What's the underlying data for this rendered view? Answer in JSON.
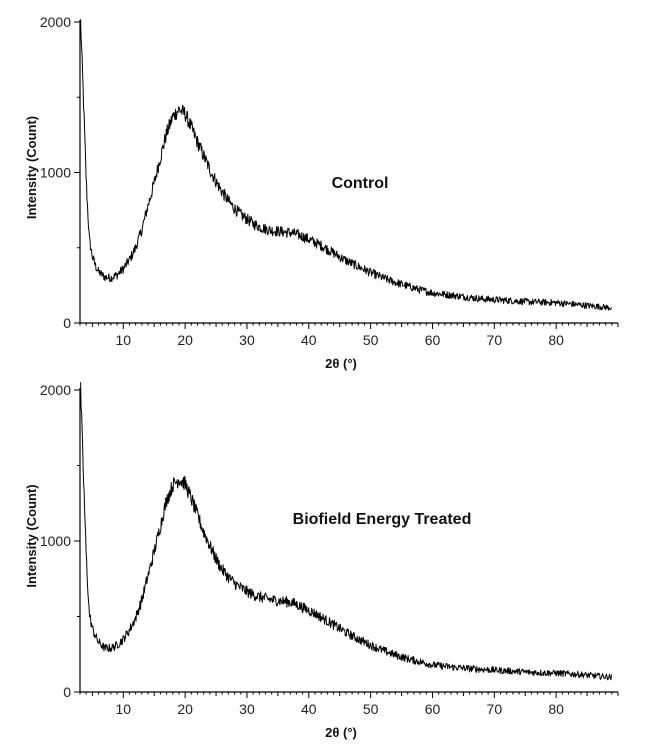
{
  "chart_data": [
    {
      "type": "line",
      "title": "",
      "annotation": "Control",
      "xlabel": "2θ (°)",
      "ylabel": "Intensity (Count)",
      "xlim": [
        3,
        90
      ],
      "ylim": [
        0,
        2000
      ],
      "xticks": [
        10,
        20,
        30,
        40,
        50,
        60,
        70,
        80
      ],
      "yticks": [
        0,
        1000,
        2000
      ],
      "grid": false,
      "series_color": "#000000",
      "series": [
        {
          "x": [
            3.1,
            3.5,
            4,
            4.5,
            5,
            5.5,
            6,
            7,
            8,
            9,
            10,
            11,
            12,
            13,
            14,
            15,
            16,
            17,
            18,
            19,
            20,
            21,
            22,
            23,
            24,
            25,
            26,
            27,
            28,
            29,
            30,
            31,
            32,
            33,
            34,
            35,
            36,
            37,
            38,
            39,
            40,
            41,
            42,
            43,
            44,
            45,
            46,
            48,
            50,
            52,
            54,
            56,
            58,
            60,
            62,
            64,
            66,
            68,
            70,
            72,
            74,
            76,
            78,
            80,
            82,
            84,
            86,
            88,
            89
          ],
          "y": [
            2000,
            1550,
            950,
            560,
            440,
            380,
            340,
            305,
            300,
            320,
            360,
            420,
            500,
            620,
            780,
            930,
            1100,
            1260,
            1370,
            1420,
            1390,
            1300,
            1200,
            1110,
            1020,
            940,
            870,
            810,
            760,
            720,
            690,
            660,
            640,
            625,
            615,
            610,
            605,
            600,
            590,
            575,
            555,
            535,
            515,
            490,
            465,
            440,
            415,
            375,
            335,
            300,
            270,
            245,
            220,
            200,
            190,
            180,
            170,
            160,
            155,
            150,
            145,
            140,
            138,
            135,
            128,
            120,
            112,
            105,
            100
          ]
        }
      ]
    },
    {
      "type": "line",
      "title": "",
      "annotation": "Biofield Energy Treated",
      "xlabel": "2θ (°)",
      "ylabel": "Intensity (Count)",
      "xlim": [
        3,
        90
      ],
      "ylim": [
        0,
        2000
      ],
      "xticks": [
        10,
        20,
        30,
        40,
        50,
        60,
        70,
        80
      ],
      "yticks": [
        0,
        1000,
        2000
      ],
      "grid": false,
      "series_color": "#000000",
      "series": [
        {
          "x": [
            3.1,
            3.5,
            4,
            4.5,
            5,
            5.5,
            6,
            7,
            8,
            9,
            10,
            11,
            12,
            13,
            14,
            15,
            16,
            17,
            18,
            19,
            20,
            21,
            22,
            23,
            24,
            25,
            26,
            27,
            28,
            29,
            30,
            31,
            32,
            33,
            34,
            35,
            36,
            37,
            38,
            39,
            40,
            41,
            42,
            43,
            44,
            45,
            46,
            48,
            50,
            52,
            54,
            56,
            58,
            60,
            62,
            64,
            66,
            68,
            70,
            72,
            74,
            76,
            78,
            80,
            82,
            84,
            86,
            88,
            89
          ],
          "y": [
            2000,
            1500,
            900,
            520,
            420,
            370,
            330,
            290,
            290,
            310,
            350,
            410,
            490,
            610,
            770,
            930,
            1100,
            1270,
            1370,
            1410,
            1380,
            1280,
            1170,
            1060,
            970,
            880,
            810,
            760,
            720,
            690,
            665,
            645,
            630,
            620,
            610,
            605,
            600,
            595,
            580,
            560,
            540,
            520,
            495,
            470,
            445,
            420,
            395,
            350,
            310,
            275,
            245,
            220,
            200,
            180,
            170,
            162,
            155,
            150,
            145,
            140,
            135,
            130,
            127,
            125,
            120,
            115,
            108,
            102,
            98
          ]
        }
      ]
    }
  ]
}
